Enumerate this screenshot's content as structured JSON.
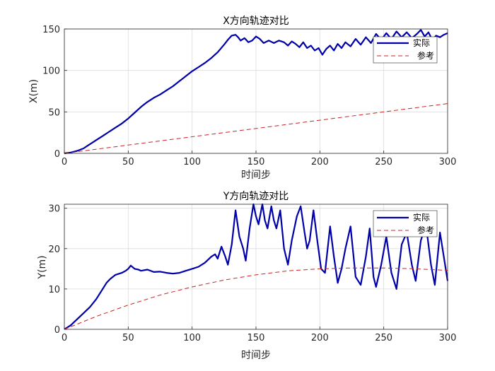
{
  "chart_data": [
    {
      "type": "line",
      "title": "X方向轨迹对比",
      "xlabel": "时间步",
      "ylabel": "X(m)",
      "xlim": [
        0,
        300
      ],
      "ylim": [
        0,
        150
      ],
      "xticks": [
        0,
        50,
        100,
        150,
        200,
        250,
        300
      ],
      "yticks": [
        0,
        50,
        100,
        150
      ],
      "grid": true,
      "legend_position": "top-right",
      "series": [
        {
          "name": "实际",
          "color": "#0000aa",
          "style": "solid",
          "points": [
            [
              0,
              0
            ],
            [
              5,
              1
            ],
            [
              10,
              3
            ],
            [
              15,
              6
            ],
            [
              20,
              11
            ],
            [
              25,
              16
            ],
            [
              30,
              21
            ],
            [
              35,
              26
            ],
            [
              40,
              31
            ],
            [
              45,
              36
            ],
            [
              50,
              42
            ],
            [
              55,
              49
            ],
            [
              60,
              56
            ],
            [
              65,
              62
            ],
            [
              70,
              67
            ],
            [
              75,
              71
            ],
            [
              80,
              76
            ],
            [
              85,
              81
            ],
            [
              90,
              87
            ],
            [
              95,
              93
            ],
            [
              100,
              99
            ],
            [
              105,
              104
            ],
            [
              110,
              109
            ],
            [
              115,
              115
            ],
            [
              120,
              122
            ],
            [
              125,
              131
            ],
            [
              128,
              137
            ],
            [
              131,
              142
            ],
            [
              134,
              143
            ],
            [
              136,
              140
            ],
            [
              138,
              136
            ],
            [
              141,
              139
            ],
            [
              144,
              134
            ],
            [
              147,
              136
            ],
            [
              150,
              141
            ],
            [
              153,
              138
            ],
            [
              156,
              133
            ],
            [
              160,
              136
            ],
            [
              164,
              133
            ],
            [
              168,
              136
            ],
            [
              172,
              134
            ],
            [
              175,
              130
            ],
            [
              178,
              135
            ],
            [
              181,
              132
            ],
            [
              184,
              128
            ],
            [
              187,
              134
            ],
            [
              190,
              127
            ],
            [
              193,
              130
            ],
            [
              196,
              124
            ],
            [
              199,
              127
            ],
            [
              202,
              119
            ],
            [
              205,
              126
            ],
            [
              208,
              130
            ],
            [
              211,
              124
            ],
            [
              214,
              132
            ],
            [
              217,
              127
            ],
            [
              220,
              134
            ],
            [
              224,
              129
            ],
            [
              228,
              138
            ],
            [
              232,
              131
            ],
            [
              236,
              140
            ],
            [
              240,
              133
            ],
            [
              244,
              144
            ],
            [
              248,
              137
            ],
            [
              252,
              145
            ],
            [
              256,
              138
            ],
            [
              260,
              147
            ],
            [
              264,
              140
            ],
            [
              268,
              146
            ],
            [
              272,
              139
            ],
            [
              276,
              144
            ],
            [
              279,
              149
            ],
            [
              282,
              141
            ],
            [
              285,
              146
            ],
            [
              288,
              137
            ],
            [
              291,
              142
            ],
            [
              294,
              140
            ],
            [
              297,
              143
            ],
            [
              300,
              145
            ]
          ]
        },
        {
          "name": "参考",
          "color": "#cc2222",
          "style": "dashed",
          "points": [
            [
              0,
              0
            ],
            [
              300,
              60
            ]
          ]
        }
      ]
    },
    {
      "type": "line",
      "title": "Y方向轨迹对比",
      "xlabel": "时间步",
      "ylabel": "Y(m)",
      "xlim": [
        0,
        300
      ],
      "ylim": [
        0,
        31
      ],
      "xticks": [
        0,
        50,
        100,
        150,
        200,
        250,
        300
      ],
      "yticks": [
        0,
        10,
        20,
        30
      ],
      "grid": true,
      "legend_position": "top-right",
      "series": [
        {
          "name": "实际",
          "color": "#0000aa",
          "style": "solid",
          "points": [
            [
              0,
              0
            ],
            [
              5,
              1
            ],
            [
              10,
              2.5
            ],
            [
              15,
              4
            ],
            [
              20,
              5.5
            ],
            [
              25,
              7.5
            ],
            [
              30,
              10
            ],
            [
              33,
              11.5
            ],
            [
              36,
              12.5
            ],
            [
              40,
              13.5
            ],
            [
              45,
              14
            ],
            [
              48,
              14.5
            ],
            [
              50,
              15
            ],
            [
              52,
              15.8
            ],
            [
              55,
              15
            ],
            [
              58,
              14.8
            ],
            [
              60,
              14.5
            ],
            [
              65,
              14.8
            ],
            [
              70,
              14.2
            ],
            [
              75,
              14.3
            ],
            [
              80,
              14
            ],
            [
              85,
              13.8
            ],
            [
              90,
              14
            ],
            [
              95,
              14.5
            ],
            [
              100,
              15
            ],
            [
              105,
              15.5
            ],
            [
              110,
              16.5
            ],
            [
              115,
              18
            ],
            [
              118,
              18.6
            ],
            [
              120,
              17.5
            ],
            [
              123,
              20.5
            ],
            [
              126,
              18
            ],
            [
              128,
              16
            ],
            [
              131,
              21
            ],
            [
              134,
              29.5
            ],
            [
              137,
              23
            ],
            [
              140,
              20
            ],
            [
              142,
              17
            ],
            [
              145,
              25
            ],
            [
              148,
              31
            ],
            [
              150,
              28
            ],
            [
              152,
              26
            ],
            [
              155,
              31
            ],
            [
              157,
              27
            ],
            [
              159,
              25
            ],
            [
              162,
              30.5
            ],
            [
              164,
              27
            ],
            [
              166,
              25
            ],
            [
              169,
              29.5
            ],
            [
              172,
              20
            ],
            [
              175,
              16
            ],
            [
              178,
              22
            ],
            [
              182,
              28
            ],
            [
              185,
              30.5
            ],
            [
              188,
              24
            ],
            [
              190,
              20
            ],
            [
              192,
              22
            ],
            [
              195,
              29.5
            ],
            [
              198,
              22
            ],
            [
              201,
              15
            ],
            [
              204,
              14
            ],
            [
              208,
              25.5
            ],
            [
              211,
              18
            ],
            [
              214,
              11.5
            ],
            [
              217,
              15
            ],
            [
              220,
              20
            ],
            [
              224,
              25.5
            ],
            [
              228,
              13
            ],
            [
              232,
              11
            ],
            [
              236,
              18
            ],
            [
              239,
              25
            ],
            [
              242,
              13
            ],
            [
              244,
              10.5
            ],
            [
              248,
              16
            ],
            [
              252,
              23
            ],
            [
              256,
              14
            ],
            [
              260,
              10
            ],
            [
              264,
              21
            ],
            [
              268,
              24
            ],
            [
              272,
              16
            ],
            [
              275,
              12
            ],
            [
              279,
              22
            ],
            [
              283,
              26
            ],
            [
              287,
              16
            ],
            [
              290,
              11
            ],
            [
              294,
              24
            ],
            [
              297,
              18
            ],
            [
              300,
              12
            ]
          ]
        },
        {
          "name": "参考",
          "color": "#cc2222",
          "style": "dashed",
          "points": [
            [
              0,
              0
            ],
            [
              25,
              3.2
            ],
            [
              50,
              6
            ],
            [
              75,
              8.5
            ],
            [
              100,
              10.5
            ],
            [
              125,
              12.2
            ],
            [
              150,
              13.5
            ],
            [
              175,
              14.5
            ],
            [
              200,
              15
            ],
            [
              225,
              15.2
            ],
            [
              250,
              15.2
            ],
            [
              275,
              15
            ],
            [
              300,
              14.6
            ]
          ]
        }
      ]
    }
  ]
}
